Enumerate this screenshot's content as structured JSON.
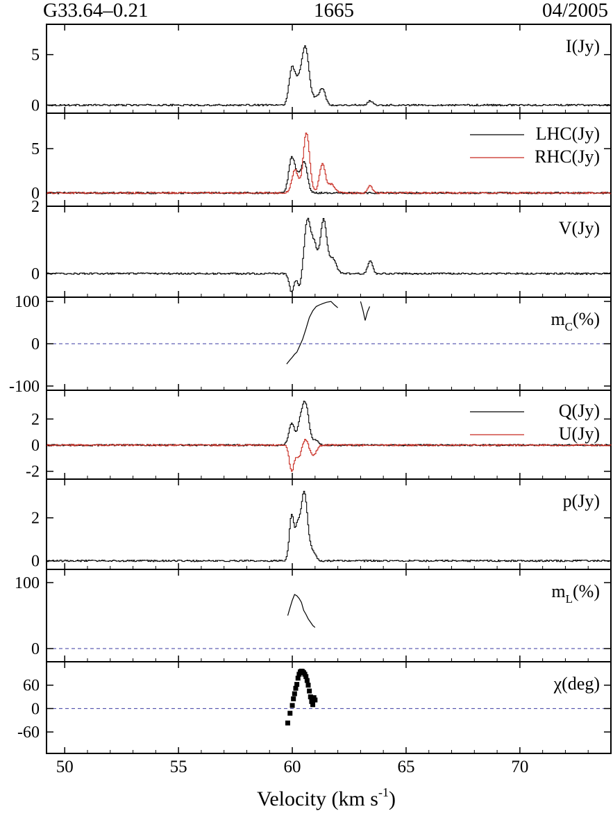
{
  "header": {
    "source": "G33.64–0.21",
    "frequency": "1665",
    "epoch": "04/2005"
  },
  "chart_data": {
    "type": "line",
    "x_axis": {
      "label": "Velocity (km s",
      "label_sup": "-1",
      "label_tail": ")",
      "xlim": [
        49.2,
        74.0
      ],
      "ticks": [
        50,
        55,
        60,
        65,
        70
      ],
      "minor_ticks": [
        51,
        52,
        53,
        54,
        56,
        57,
        58,
        59,
        61,
        62,
        63,
        64,
        66,
        67,
        68,
        69,
        71,
        72,
        73
      ]
    },
    "panels": [
      {
        "label": "I(Jy)",
        "ylim": [
          -0.8,
          8.0
        ],
        "yticks": [
          0,
          5
        ],
        "yticklabels": [
          "0",
          "5"
        ],
        "series": [
          {
            "color": "#000000",
            "step": true,
            "peaks": [
              [
                59.95,
                3.3,
                0.12
              ],
              [
                60.55,
                5.7,
                0.16
              ],
              [
                60.2,
                2.0,
                0.15
              ],
              [
                61.3,
                1.6,
                0.13
              ],
              [
                61.0,
                0.6,
                0.15
              ],
              [
                63.4,
                0.45,
                0.1
              ]
            ]
          }
        ]
      },
      {
        "label": "",
        "ylim": [
          -1.5,
          9.0
        ],
        "yticks": [
          0,
          5
        ],
        "yticklabels": [
          "0",
          "5"
        ],
        "legend": [
          "LHC(Jy)",
          "RHC(Jy)"
        ],
        "series": [
          {
            "name": "LHC(Jy)",
            "color": "#000000",
            "step": true,
            "peaks": [
              [
                59.95,
                3.9,
                0.13
              ],
              [
                60.5,
                3.5,
                0.14
              ],
              [
                60.2,
                1.5,
                0.12
              ]
            ]
          },
          {
            "name": "RHC(Jy)",
            "color": "#c8281e",
            "step": true,
            "peaks": [
              [
                60.1,
                2.6,
                0.14
              ],
              [
                60.6,
                6.8,
                0.14
              ],
              [
                61.3,
                3.3,
                0.13
              ],
              [
                61.7,
                1.0,
                0.15
              ],
              [
                63.4,
                0.8,
                0.1
              ]
            ]
          }
        ]
      },
      {
        "label": "V(Jy)",
        "ylim": [
          -0.7,
          2.0
        ],
        "yticks": [
          0,
          2
        ],
        "yticklabels": [
          "0",
          "2"
        ],
        "series": [
          {
            "color": "#000000",
            "step": true,
            "peaks": [
              [
                59.95,
                -0.55,
                0.1
              ],
              [
                60.3,
                -0.4,
                0.1
              ],
              [
                60.65,
                1.6,
                0.14
              ],
              [
                60.95,
                0.8,
                0.12
              ],
              [
                61.35,
                1.6,
                0.14
              ],
              [
                61.75,
                0.45,
                0.15
              ],
              [
                63.4,
                0.4,
                0.1
              ]
            ]
          }
        ]
      },
      {
        "label": "m",
        "label_sub": "C",
        "label_tail": "(%)",
        "ylim": [
          -110,
          110
        ],
        "yticks": [
          -100,
          0,
          100
        ],
        "yticklabels": [
          "-100",
          "0",
          "100"
        ],
        "zero_line": true,
        "segments": [
          {
            "x": [
              59.75,
              59.9,
              60.0,
              60.1,
              60.2,
              60.3,
              60.45,
              60.6,
              60.75,
              60.9,
              61.05,
              61.2,
              61.35,
              61.5,
              61.7,
              61.85,
              62.0
            ],
            "y": [
              -48,
              -38,
              -32,
              -25,
              -20,
              -8,
              10,
              35,
              62,
              78,
              88,
              92,
              95,
              98,
              100,
              92,
              85
            ]
          },
          {
            "x": [
              63.0,
              63.1,
              63.2,
              63.3,
              63.4
            ],
            "y": [
              100,
              80,
              55,
              75,
              88
            ]
          }
        ]
      },
      {
        "label": "",
        "ylim": [
          -2.6,
          4.2
        ],
        "yticks": [
          -2,
          0,
          2
        ],
        "yticklabels": [
          "-2",
          "0",
          "2"
        ],
        "legend": [
          "Q(Jy)",
          "U(Jy)"
        ],
        "series": [
          {
            "name": "Q(Jy)",
            "color": "#000000",
            "step": true,
            "peaks": [
              [
                59.95,
                1.7,
                0.12
              ],
              [
                60.55,
                3.2,
                0.15
              ],
              [
                60.3,
                1.2,
                0.12
              ],
              [
                61.0,
                0.35,
                0.12
              ]
            ]
          },
          {
            "name": "U(Jy)",
            "color": "#c8281e",
            "step": true,
            "peaks": [
              [
                59.95,
                -2.0,
                0.1
              ],
              [
                60.25,
                -0.9,
                0.12
              ],
              [
                60.55,
                0.5,
                0.1
              ],
              [
                60.9,
                -0.8,
                0.13
              ]
            ]
          }
        ]
      },
      {
        "label": "p(Jy)",
        "ylim": [
          -0.4,
          3.8
        ],
        "yticks": [
          0,
          2
        ],
        "yticklabels": [
          "0",
          "2"
        ],
        "series": [
          {
            "color": "#000000",
            "step": true,
            "peaks": [
              [
                59.95,
                2.1,
                0.1
              ],
              [
                60.5,
                3.2,
                0.15
              ],
              [
                60.2,
                1.3,
                0.1
              ],
              [
                60.9,
                0.4,
                0.12
              ]
            ]
          }
        ]
      },
      {
        "label": "m",
        "label_sub": "L",
        "label_tail": "(%)",
        "ylim": [
          -20,
          120
        ],
        "yticks": [
          0,
          100
        ],
        "yticklabels": [
          "0",
          "100"
        ],
        "zero_line": true,
        "segments": [
          {
            "x": [
              59.8,
              59.9,
              60.0,
              60.1,
              60.2,
              60.3,
              60.4,
              60.5,
              60.6,
              60.7,
              60.8,
              60.9,
              61.0
            ],
            "y": [
              50,
              62,
              73,
              82,
              80,
              76,
              70,
              58,
              52,
              45,
              40,
              35,
              32
            ]
          }
        ]
      },
      {
        "label": "χ(deg)",
        "ylim": [
          -115,
          120
        ],
        "yticks": [
          -60,
          0,
          60
        ],
        "yticklabels": [
          "-60",
          "0",
          "60"
        ],
        "zero_line": true,
        "points": {
          "x": [
            59.8,
            59.9,
            60.0,
            60.05,
            60.1,
            60.15,
            60.2,
            60.25,
            60.3,
            60.35,
            60.4,
            60.45,
            60.5,
            60.55,
            60.6,
            60.65,
            60.7,
            60.75,
            60.8,
            60.85,
            60.9,
            60.95,
            61.0
          ],
          "y": [
            -37,
            -12,
            8,
            25,
            38,
            52,
            62,
            78,
            88,
            94,
            96,
            95,
            92,
            88,
            82,
            72,
            60,
            45,
            30,
            18,
            10,
            28,
            22
          ]
        }
      }
    ]
  }
}
